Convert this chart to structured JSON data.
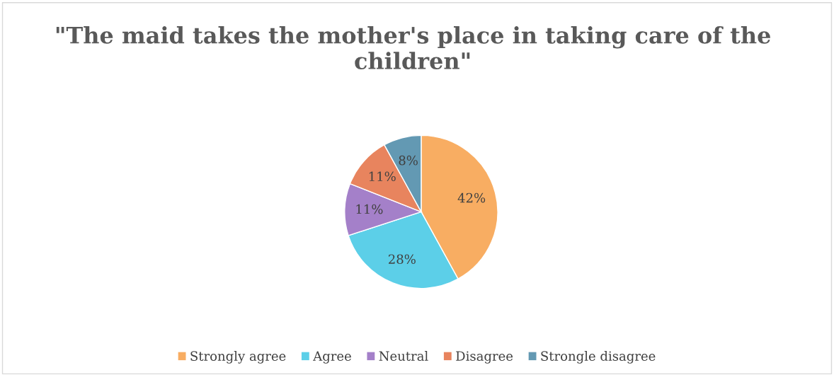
{
  "chart_data": {
    "type": "pie",
    "title": "\"The maid takes the mother's place in taking care of the children\"",
    "categories": [
      "Strongly agree",
      "Agree",
      "Neutral",
      "Disagree",
      "Strongle disagree"
    ],
    "values": [
      42,
      28,
      11,
      11,
      8
    ],
    "colors": [
      "#f8ad62",
      "#5ccfe8",
      "#a480c9",
      "#e8845e",
      "#6399b3"
    ],
    "value_labels": [
      "42%",
      "28%",
      "11%",
      "11%",
      "8%"
    ],
    "legend": "bottom"
  }
}
